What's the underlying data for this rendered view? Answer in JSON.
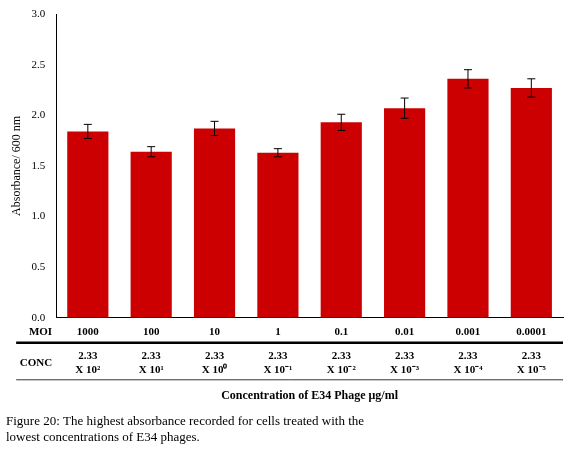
{
  "chart_data": {
    "type": "bar",
    "title": "Figure 20: The highest absorbance recorded for cells treated with the\nlowest concentrations of E34 phages.",
    "categories": [
      [
        "1000",
        "2.33",
        "X 10²"
      ],
      [
        "100",
        "2.33",
        "X 10¹"
      ],
      [
        "10",
        "2.33",
        "X 10⁰"
      ],
      [
        "1",
        "2.33",
        "X 10⁻¹"
      ],
      [
        "0.1",
        "2.33",
        "X 10⁻²"
      ],
      [
        "0.01",
        "2.33",
        "X 10⁻³"
      ],
      [
        "0.001",
        "2.33",
        "X 10⁻⁴"
      ],
      [
        "0.0001",
        "2.33",
        "X 10⁻⁵"
      ]
    ],
    "values": [
      1.84,
      1.64,
      1.87,
      1.63,
      1.93,
      2.07,
      2.36,
      2.27
    ],
    "errors": [
      0.07,
      0.05,
      0.07,
      0.04,
      0.08,
      0.1,
      0.09,
      0.09
    ],
    "color": "#cc0000",
    "annotations": [
      "MOI",
      "CONC"
    ],
    "xlabel": "Concentration of E34 Phage μg/ml",
    "ylabel": "Absorbance/ 600 nm",
    "ylim": [
      0,
      3.0
    ],
    "yticks": [
      {
        "value": 0.0,
        "label": "0.0"
      },
      0.5,
      {
        "value": 1.0,
        "label": "1.0"
      },
      1.5,
      {
        "value": 2.0,
        "label": "2.0"
      },
      2.5,
      {
        "value": 3.0,
        "label": "3.0"
      }
    ],
    "grid": false
  }
}
